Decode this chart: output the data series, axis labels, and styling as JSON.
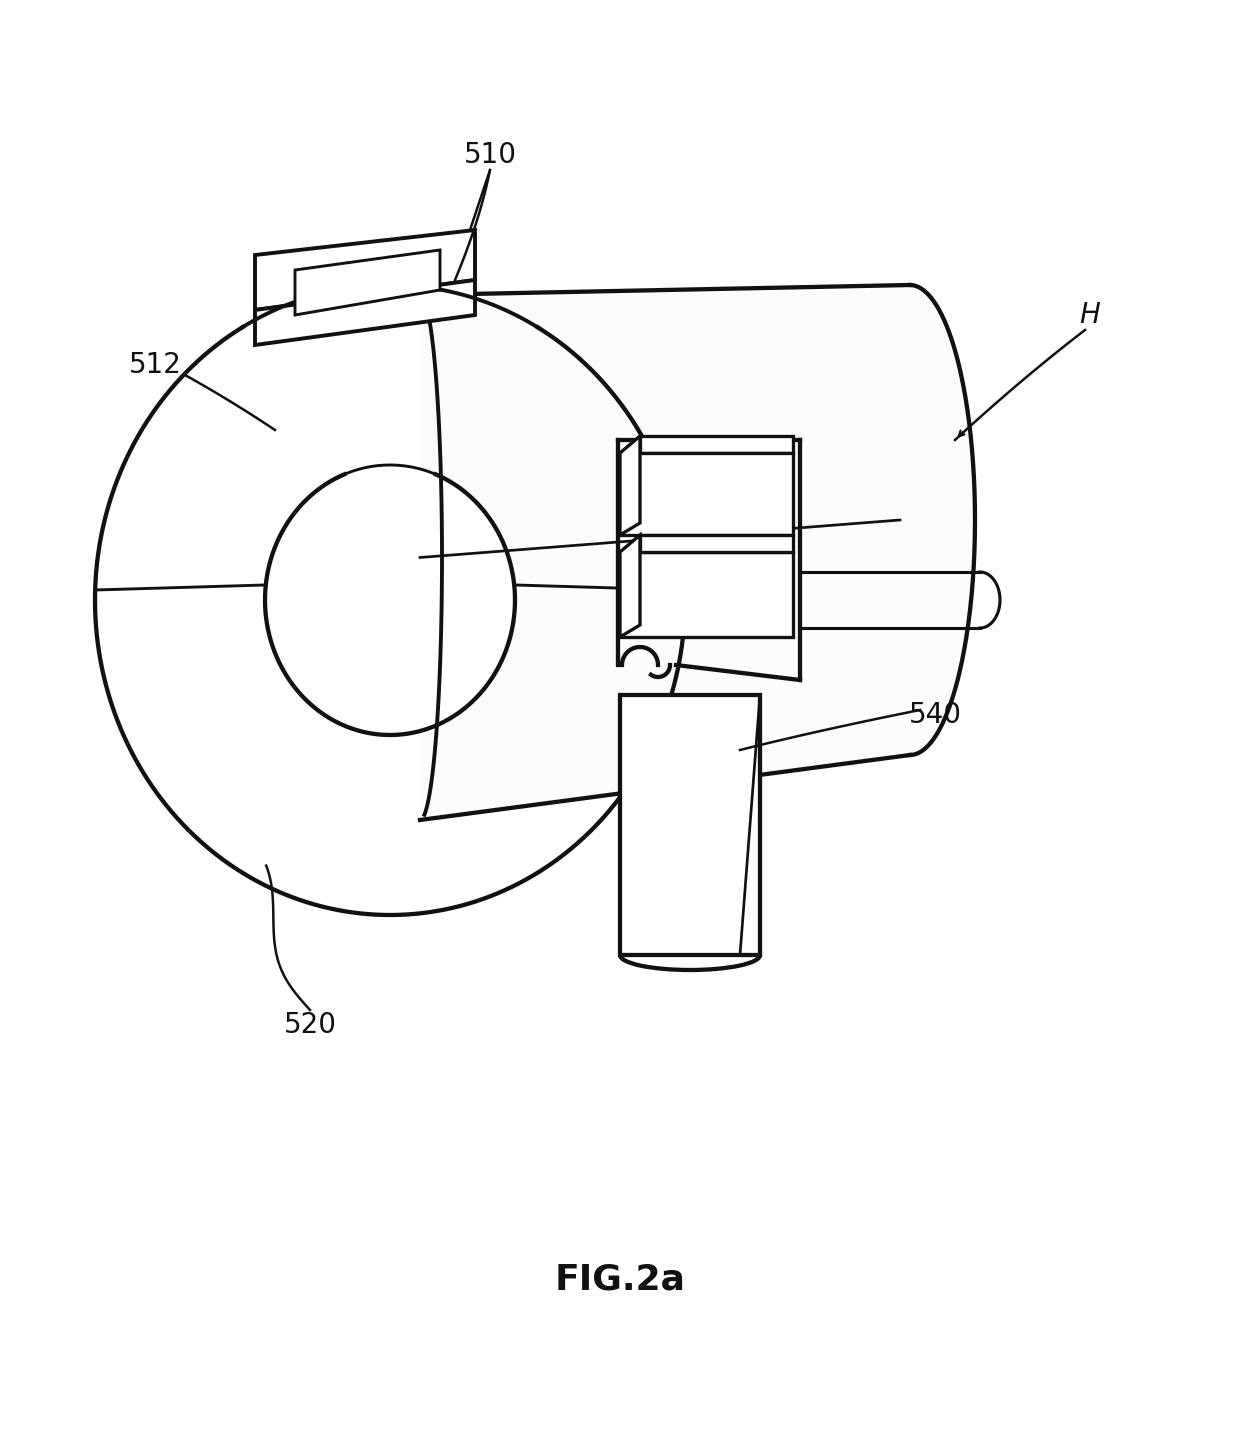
{
  "title": "FIG.2a",
  "title_fontsize": 26,
  "title_fontweight": "bold",
  "bg_color": "#ffffff",
  "line_color": "#1a1a1a",
  "line_width": 2.8,
  "label_fontsize": 20,
  "fig_width": 12.4,
  "fig_height": 14.49,
  "dpi": 100
}
